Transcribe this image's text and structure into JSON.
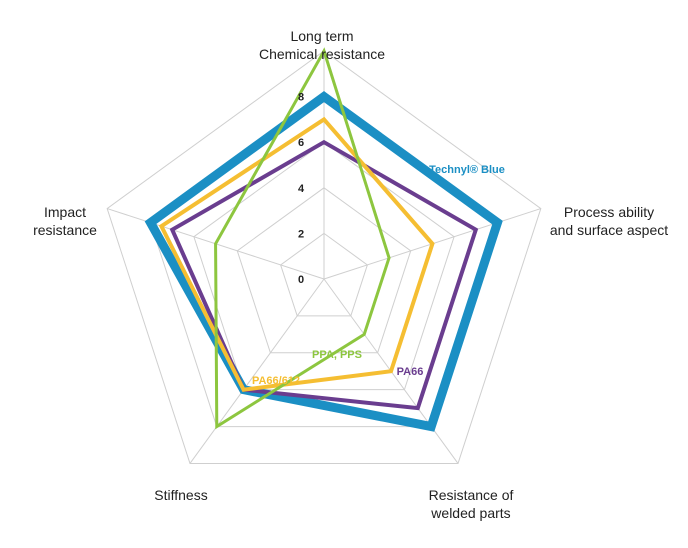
{
  "chart_data": {
    "type": "radar",
    "axes": [
      [
        "Long term",
        "Chemical resistance"
      ],
      [
        "Process ability",
        "and surface aspect"
      ],
      [
        "Resistance of",
        "welded parts"
      ],
      [
        "Stiffness"
      ],
      [
        "Impact",
        "resistance"
      ]
    ],
    "rlim": [
      0,
      10
    ],
    "ticks": [
      "0",
      "2",
      "4",
      "6",
      "8"
    ],
    "grid": true,
    "series": [
      {
        "name": "Technyl® Blue",
        "color": "#1b8fc4",
        "values": [
          8,
          8,
          8,
          6,
          8
        ]
      },
      {
        "name": "PA66",
        "color": "#6a3d8f",
        "values": [
          6,
          7,
          7,
          6,
          7
        ]
      },
      {
        "name": "PA66/612",
        "color": "#f5be32",
        "values": [
          7,
          5,
          5,
          6,
          7.5
        ]
      },
      {
        "name": "PPA, PPS",
        "color": "#8dc63f",
        "values": [
          10,
          3,
          3,
          8,
          5
        ]
      }
    ]
  }
}
